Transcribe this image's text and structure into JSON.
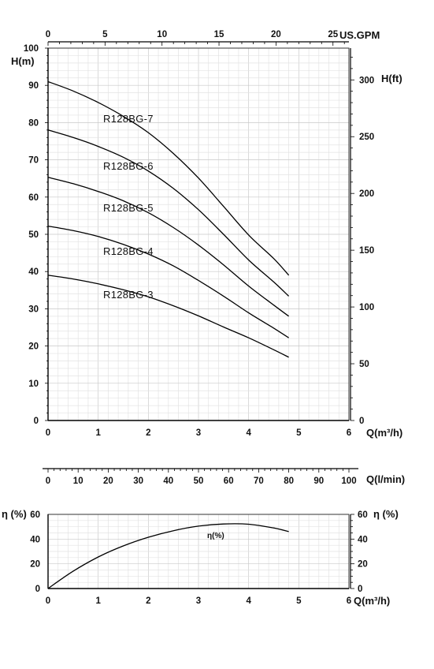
{
  "chart_data": [
    {
      "type": "line",
      "name": "head-curves",
      "xlim": [
        0,
        6
      ],
      "ylim": [
        0,
        100
      ],
      "x_ticks": [
        0,
        1,
        2,
        3,
        4,
        5,
        6
      ],
      "y_ticks": [
        0,
        10,
        20,
        30,
        40,
        50,
        60,
        70,
        80,
        90,
        100
      ],
      "ylabel": "H(m)",
      "xlabel": "Q(m³/h)",
      "top_axis": {
        "label": "US.GPM",
        "ticks": [
          0,
          5,
          10,
          15,
          20,
          25
        ],
        "max": 26.4
      },
      "right_axis": {
        "label": "H(ft)",
        "ticks": [
          0,
          50,
          100,
          150,
          200,
          250,
          300
        ],
        "max": 328
      },
      "grid": true,
      "series": [
        {
          "name": "R128BG-7",
          "x": [
            0,
            0.5,
            1,
            1.5,
            2,
            2.5,
            3,
            3.5,
            4,
            4.5,
            4.8
          ],
          "y": [
            91,
            88.5,
            85.4,
            81.7,
            77.3,
            71.7,
            65.1,
            57.5,
            49.8,
            43.5,
            39
          ]
        },
        {
          "name": "R128BG-6",
          "x": [
            0,
            0.5,
            1,
            1.5,
            2,
            2.5,
            3,
            3.5,
            4,
            4.5,
            4.8
          ],
          "y": [
            78,
            76,
            73.6,
            70.7,
            67,
            62.3,
            56.6,
            50,
            43.1,
            37.2,
            33.4
          ]
        },
        {
          "name": "R128BG-5",
          "x": [
            0,
            0.5,
            1,
            1.5,
            2,
            2.5,
            3,
            3.5,
            4,
            4.5,
            4.8
          ],
          "y": [
            65.3,
            63.6,
            61.5,
            59,
            55.8,
            51.8,
            47.1,
            41.8,
            36.1,
            31,
            28
          ]
        },
        {
          "name": "R128BG-4",
          "x": [
            0,
            0.5,
            1,
            1.5,
            2,
            2.5,
            3,
            3.5,
            4,
            4.5,
            4.8
          ],
          "y": [
            52.2,
            51,
            49.4,
            47.3,
            44.7,
            41.5,
            37.6,
            33.4,
            28.9,
            24.8,
            22.2
          ]
        },
        {
          "name": "R128BG-3",
          "x": [
            0,
            0.5,
            1,
            1.5,
            2,
            2.5,
            3,
            3.5,
            4,
            4.5,
            4.8
          ],
          "y": [
            39,
            38,
            36.7,
            35.1,
            33.2,
            30.8,
            28.1,
            25.1,
            22.2,
            19,
            17
          ]
        }
      ]
    },
    {
      "type": "line",
      "name": "flow-scale",
      "xlabel": "Q(l/min)",
      "ticks": [
        0,
        10,
        20,
        30,
        40,
        50,
        60,
        70,
        80,
        90,
        100
      ],
      "xlim": [
        0,
        100
      ]
    },
    {
      "type": "line",
      "name": "efficiency",
      "xlim": [
        0,
        6
      ],
      "ylim": [
        0,
        60
      ],
      "x_ticks": [
        0,
        1,
        2,
        3,
        4,
        5,
        6
      ],
      "y_ticks": [
        0,
        20,
        40,
        60
      ],
      "ylabel": "η (%)",
      "right_ylabel": "η (%)",
      "xlabel": "Q(m³/h)",
      "grid": true,
      "series": [
        {
          "name": "η(%)",
          "x": [
            0,
            0.5,
            1,
            1.5,
            2,
            2.5,
            3,
            3.5,
            4,
            4.5,
            4.8
          ],
          "y": [
            0,
            14,
            25.5,
            34.5,
            41.5,
            46.8,
            50.5,
            52.2,
            52,
            49,
            46
          ]
        }
      ]
    }
  ]
}
